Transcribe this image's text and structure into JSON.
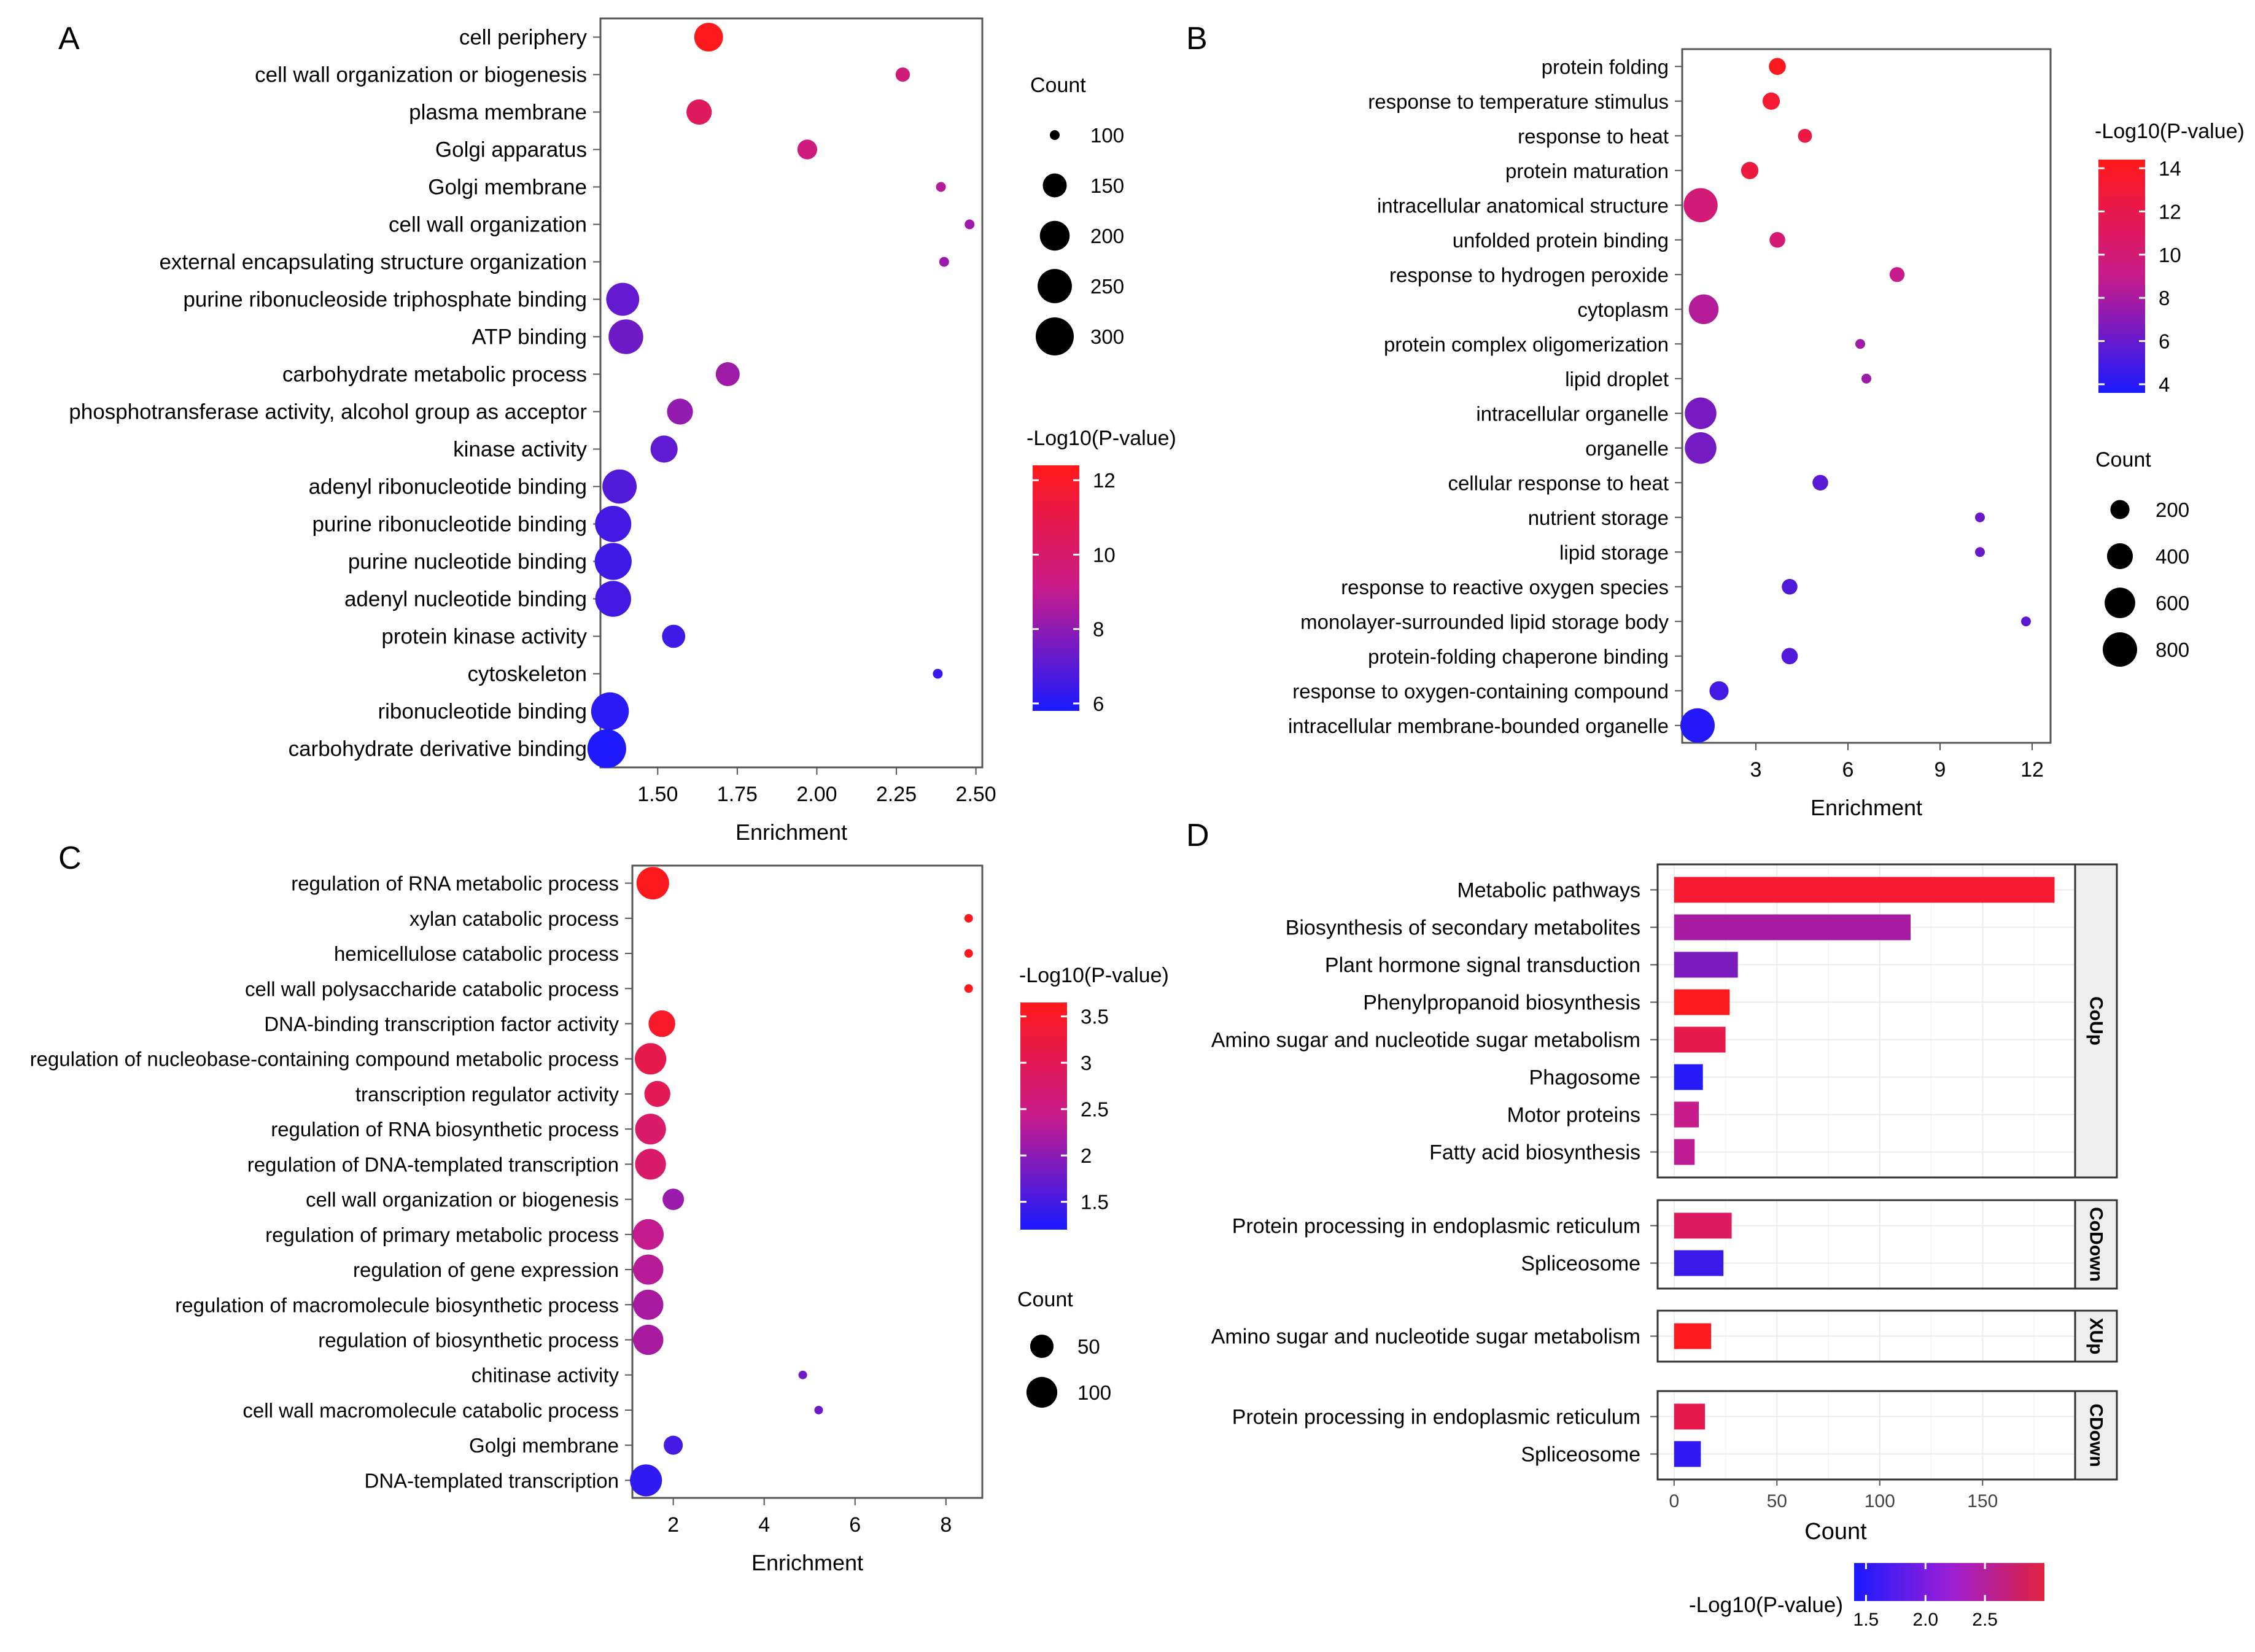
{
  "figure": {
    "colors": {
      "high": "#ff1a1a",
      "mid": "#c81b8c",
      "low": "#1a1aff",
      "frame": "#555555",
      "grid": "#ececec",
      "strip": "#eeeeee"
    }
  },
  "chart_data": [
    {
      "panel": "A",
      "type": "scatter",
      "xlabel": "Enrichment",
      "xlim": [
        1.32,
        2.52
      ],
      "xticks": [
        1.5,
        1.75,
        2.0,
        2.25,
        2.5
      ],
      "xtick_labels": [
        "1.50",
        "1.75",
        "2.00",
        "2.25",
        "2.50"
      ],
      "color_title": "-Log10(P-value)",
      "color_range": [
        5.8,
        12.4
      ],
      "color_ticks": [
        6,
        8,
        10,
        12
      ],
      "size_title": "Count",
      "size_range": [
        100,
        300
      ],
      "size_ticks": [
        100,
        150,
        200,
        250,
        300
      ],
      "terms": [
        "cell periphery",
        "cell wall organization or biogenesis",
        "plasma membrane",
        "Golgi apparatus",
        "Golgi membrane",
        "cell wall organization",
        "external encapsulating structure organization",
        "purine ribonucleoside triphosphate binding",
        "ATP binding",
        "carbohydrate metabolic process",
        "phosphotransferase activity, alcohol group as acceptor",
        "kinase activity",
        "adenyl ribonucleotide binding",
        "purine ribonucleotide binding",
        "purine nucleotide binding",
        "adenyl nucleotide binding",
        "protein kinase activity",
        "cytoskeleton",
        "ribonucleotide binding",
        "carbohydrate derivative binding"
      ],
      "enrichment": [
        1.66,
        2.27,
        1.63,
        1.97,
        2.39,
        2.48,
        2.4,
        1.39,
        1.4,
        1.72,
        1.57,
        1.52,
        1.38,
        1.36,
        1.36,
        1.36,
        1.55,
        2.38,
        1.35,
        1.34
      ],
      "log10p": [
        12.3,
        9.6,
        10.4,
        9.5,
        8.7,
        8.3,
        8.2,
        7.2,
        7.4,
        8.3,
        8.1,
        7.1,
        6.9,
        6.6,
        6.5,
        6.6,
        6.5,
        6.4,
        6.1,
        5.9
      ],
      "count": [
        190,
        105,
        160,
        125,
        95,
        70,
        95,
        235,
        255,
        150,
        165,
        175,
        250,
        275,
        285,
        270,
        145,
        45,
        295,
        310
      ]
    },
    {
      "panel": "B",
      "type": "scatter",
      "xlabel": "Enrichment",
      "xlim": [
        0.6,
        12.6
      ],
      "xticks": [
        3,
        6,
        9,
        12
      ],
      "xtick_labels": [
        "3",
        "6",
        "9",
        "12"
      ],
      "color_title": "-Log10(P-value)",
      "color_range": [
        3.6,
        14.4
      ],
      "color_ticks": [
        4,
        6,
        8,
        10,
        12,
        14
      ],
      "size_title": "Count",
      "size_range": [
        100,
        800
      ],
      "size_ticks": [
        200,
        400,
        600,
        800
      ],
      "terms": [
        "protein folding",
        "response to temperature stimulus",
        "response to heat",
        "protein maturation",
        "intracellular anatomical structure",
        "unfolded protein binding",
        "response to hydrogen peroxide",
        "cytoplasm",
        "protein complex oligomerization",
        "lipid droplet",
        "intracellular organelle",
        "organelle",
        "cellular response to heat",
        "nutrient storage",
        "lipid storage",
        "response to reactive oxygen species",
        "monolayer-surrounded lipid storage body",
        "protein-folding chaperone binding",
        "response to oxygen-containing compound",
        "intracellular membrane-bounded organelle"
      ],
      "enrichment": [
        3.7,
        3.5,
        4.6,
        2.8,
        1.2,
        3.7,
        7.6,
        1.3,
        6.4,
        6.6,
        1.2,
        1.2,
        5.1,
        10.3,
        10.3,
        4.1,
        11.8,
        4.1,
        1.8,
        1.1
      ],
      "log10p": [
        14.2,
        13.3,
        12.5,
        12.6,
        10.0,
        10.2,
        9.0,
        8.4,
        7.8,
        7.7,
        6.5,
        6.4,
        5.6,
        6.1,
        6.1,
        5.3,
        5.6,
        5.3,
        4.8,
        3.9
      ],
      "count": [
        160,
        165,
        120,
        165,
        780,
        140,
        130,
        560,
        100,
        95,
        650,
        650,
        140,
        95,
        95,
        140,
        90,
        150,
        200,
        800
      ]
    },
    {
      "panel": "C",
      "type": "scatter",
      "xlabel": "Enrichment",
      "xlim": [
        1.1,
        8.8
      ],
      "xticks": [
        2,
        4,
        6,
        8
      ],
      "xtick_labels": [
        "2",
        "4",
        "6",
        "8"
      ],
      "color_title": "-Log10(P-value)",
      "color_range": [
        1.2,
        3.65
      ],
      "color_ticks": [
        1.5,
        2.0,
        2.5,
        3.0,
        3.5
      ],
      "size_title": "Count",
      "size_range": [
        10,
        120
      ],
      "size_ticks": [
        50,
        100
      ],
      "terms": [
        "regulation of RNA metabolic process",
        "xylan catabolic process",
        "hemicellulose catabolic process",
        "cell wall polysaccharide catabolic process",
        "DNA-binding transcription factor activity",
        "regulation of nucleobase-containing compound metabolic process",
        "transcription regulator activity",
        "regulation of RNA biosynthetic process",
        "regulation of DNA-templated transcription",
        "cell wall organization or biogenesis",
        "regulation of primary metabolic process",
        "regulation of gene expression",
        "regulation of macromolecule biosynthetic process",
        "regulation of biosynthetic process",
        "chitinase activity",
        "cell wall macromolecule catabolic process",
        "Golgi membrane",
        "DNA-templated transcription"
      ],
      "enrichment": [
        1.55,
        8.5,
        8.5,
        8.5,
        1.75,
        1.5,
        1.65,
        1.5,
        1.5,
        2.0,
        1.45,
        1.45,
        1.45,
        1.45,
        4.85,
        5.2,
        2.0,
        1.4
      ],
      "log10p": [
        3.6,
        3.6,
        3.6,
        3.6,
        3.5,
        3.1,
        3.0,
        2.8,
        2.8,
        2.1,
        2.4,
        2.3,
        2.2,
        2.2,
        1.8,
        1.8,
        1.5,
        1.35
      ],
      "count": [
        115,
        5,
        5,
        5,
        70,
        105,
        65,
        100,
        100,
        40,
        100,
        95,
        95,
        95,
        5,
        5,
        30,
        110
      ]
    },
    {
      "panel": "D",
      "type": "bar",
      "orientation": "horizontal",
      "xlabel": "Count",
      "xlim": [
        -8,
        195
      ],
      "xticks": [
        0,
        50,
        100,
        150
      ],
      "xtick_labels": [
        "0",
        "50",
        "100",
        "150"
      ],
      "color_title": "-Log10(P-value)",
      "color_range": [
        1.4,
        3.0
      ],
      "color_ticks": [
        1.5,
        2.0,
        2.5
      ],
      "color_tick_labels": [
        "1.5",
        "2.0",
        "2.5"
      ],
      "facets": [
        {
          "name": "CoUp",
          "categories": [
            "Metabolic pathways",
            "Biosynthesis of secondary metabolites",
            "Plant hormone signal transduction",
            "Phenylpropanoid biosynthesis",
            "Amino sugar and nucleotide sugar metabolism",
            "Phagosome",
            "Motor proteins",
            "Fatty acid biosynthesis"
          ],
          "values": [
            185,
            115,
            31,
            27,
            25,
            14,
            12,
            10
          ],
          "log10p": [
            2.85,
            2.05,
            1.85,
            2.95,
            2.65,
            1.45,
            2.2,
            2.15
          ]
        },
        {
          "name": "CoDown",
          "categories": [
            "Protein processing in endoplasmic reticulum",
            "Spliceosome"
          ],
          "values": [
            28,
            24
          ],
          "log10p": [
            2.5,
            1.55
          ]
        },
        {
          "name": "XUp",
          "categories": [
            "Amino sugar and nucleotide sugar metabolism"
          ],
          "values": [
            18
          ],
          "log10p": [
            2.95
          ]
        },
        {
          "name": "CDown",
          "categories": [
            "Protein processing in endoplasmic reticulum",
            "Spliceosome"
          ],
          "values": [
            15,
            13
          ],
          "log10p": [
            2.65,
            1.5
          ]
        }
      ]
    }
  ]
}
